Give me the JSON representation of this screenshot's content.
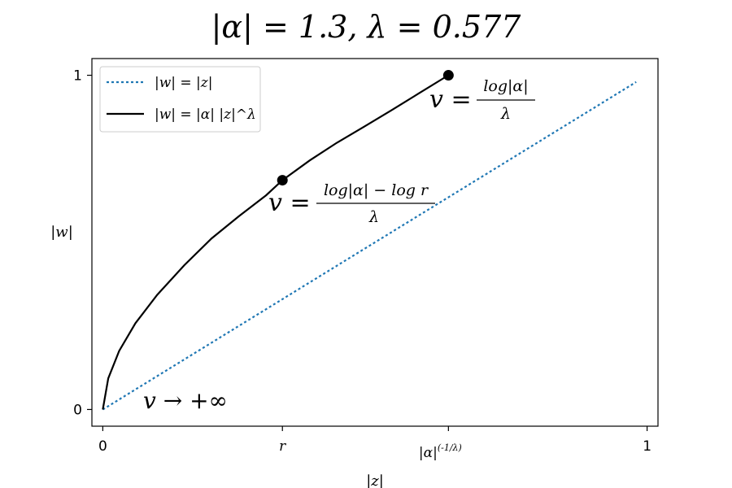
{
  "chart_data": {
    "type": "line",
    "title": "|α| = 1.3, λ = 0.577",
    "alpha": 1.3,
    "lambda": 0.577,
    "xlabel": "|z|",
    "ylabel": "|w|",
    "xlim": [
      -0.02,
      1.02
    ],
    "ylim": [
      -0.05,
      1.05
    ],
    "grid": false,
    "legend_placement": "top-left",
    "x_ticks": [
      {
        "value": 0,
        "label": "0"
      },
      {
        "value": 0.33,
        "label": "r"
      },
      {
        "value": 0.635,
        "label": "|α|^(-1/λ)"
      },
      {
        "value": 1,
        "label": "1"
      }
    ],
    "y_ticks": [
      {
        "value": 0,
        "label": "0"
      },
      {
        "value": 1,
        "label": "1"
      }
    ],
    "series": [
      {
        "name": "|w| = |z|",
        "style": "dotted",
        "color": "#1f77b4",
        "x": [
          0,
          0.36,
          0.62,
          0.98
        ],
        "y": [
          0,
          0.36,
          0.62,
          0.98
        ]
      },
      {
        "name": "|w| = |α| |z|^λ",
        "style": "solid",
        "color": "#000000",
        "x": [
          0,
          0.01,
          0.03,
          0.06,
          0.1,
          0.15,
          0.2,
          0.25,
          0.3,
          0.33,
          0.38,
          0.43,
          0.48,
          0.53,
          0.58,
          0.635
        ],
        "y": [
          0,
          0.093,
          0.175,
          0.258,
          0.343,
          0.432,
          0.512,
          0.578,
          0.641,
          0.686,
          0.745,
          0.798,
          0.846,
          0.895,
          0.945,
          1.0
        ]
      }
    ],
    "points": [
      {
        "x": 0.33,
        "y": 0.686,
        "color": "#000000"
      },
      {
        "x": 0.635,
        "y": 1.0,
        "color": "#000000"
      }
    ],
    "annotations": [
      {
        "id": "annot-infinity",
        "text": "v → +∞"
      },
      {
        "id": "annot-r",
        "lhs": "v =",
        "numerator": "log|α| − log r",
        "denominator": "λ"
      },
      {
        "id": "annot-alpha",
        "lhs": "v =",
        "numerator": "log|α|",
        "denominator": "λ"
      }
    ]
  }
}
